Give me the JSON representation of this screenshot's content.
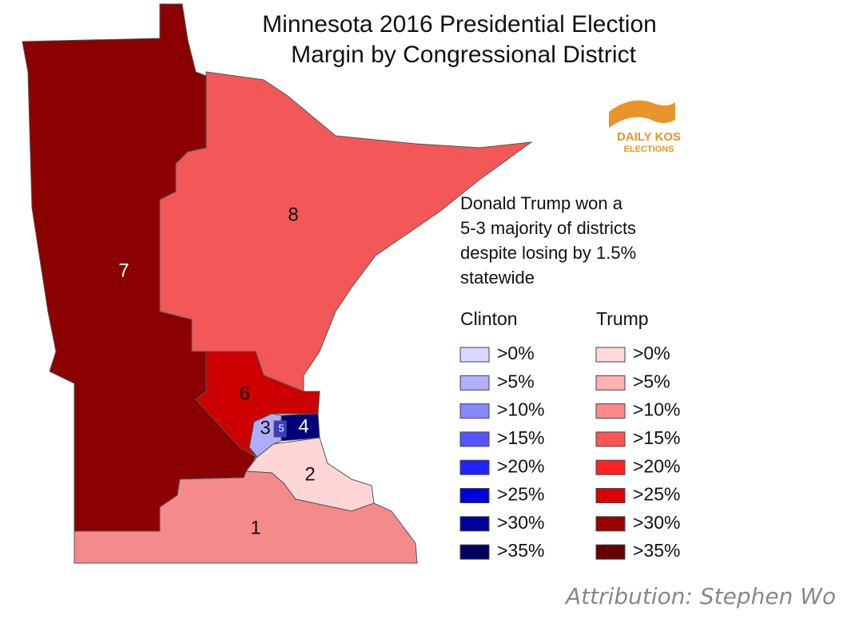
{
  "title": "Minnesota 2016 Presidential Election",
  "subtitle": "Margin by Congressional District",
  "logo": {
    "line1": "DAILY KOS",
    "line2": "ELECTIONS",
    "color": "#e8942a"
  },
  "note": [
    "Donald Trump won a",
    "5-3 majority of districts",
    "despite losing by 1.5%",
    "statewide"
  ],
  "districts": [
    {
      "label": "1",
      "color": "#f58a8a"
    },
    {
      "label": "2",
      "color": "#ffd6d6"
    },
    {
      "label": "3",
      "color": "#aeaef8"
    },
    {
      "label": "4",
      "color": "#00007a"
    },
    {
      "label": "5",
      "color": "#3a3ad0"
    },
    {
      "label": "6",
      "color": "#cc0000"
    },
    {
      "label": "7",
      "color": "#8b0000"
    },
    {
      "label": "8",
      "color": "#f25858"
    }
  ],
  "legend": {
    "clinton": {
      "title": "Clinton",
      "items": [
        {
          "label": ">0%",
          "color": "#d8d8ff"
        },
        {
          "label": ">5%",
          "color": "#b0b0ff"
        },
        {
          "label": ">10%",
          "color": "#8888ff"
        },
        {
          "label": ">15%",
          "color": "#5555ff"
        },
        {
          "label": ">20%",
          "color": "#2222ff"
        },
        {
          "label": ">25%",
          "color": "#0000dd"
        },
        {
          "label": ">30%",
          "color": "#00009a"
        },
        {
          "label": ">35%",
          "color": "#000060"
        }
      ]
    },
    "trump": {
      "title": "Trump",
      "items": [
        {
          "label": ">0%",
          "color": "#ffdada"
        },
        {
          "label": ">5%",
          "color": "#ffb0b0"
        },
        {
          "label": ">10%",
          "color": "#ff8888"
        },
        {
          "label": ">15%",
          "color": "#ff5555"
        },
        {
          "label": ">20%",
          "color": "#ff2222"
        },
        {
          "label": ">25%",
          "color": "#dd0000"
        },
        {
          "label": ">30%",
          "color": "#990000"
        },
        {
          "label": ">35%",
          "color": "#660000"
        }
      ]
    }
  },
  "attribution": "Attribution: Stephen Wo"
}
